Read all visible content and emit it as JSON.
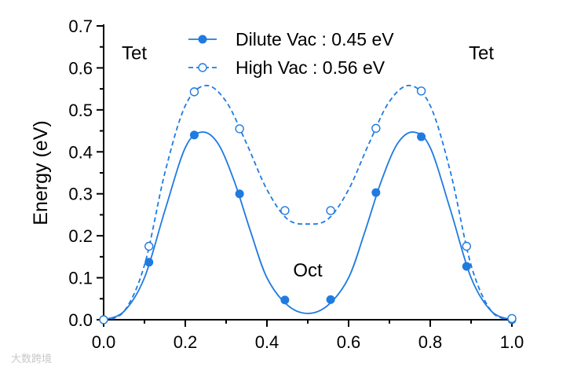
{
  "chart_data": {
    "type": "line",
    "title": "",
    "xlabel": "",
    "ylabel": "Energy (eV)",
    "xlim": [
      0.0,
      1.0
    ],
    "ylim": [
      0.0,
      0.7
    ],
    "xticks": [
      0.0,
      0.2,
      0.4,
      0.6,
      0.8,
      1.0
    ],
    "xtick_labels": [
      "0.0",
      "0.2",
      "0.4",
      "0.6",
      "0.8",
      "1.0"
    ],
    "yticks": [
      0.0,
      0.1,
      0.2,
      0.3,
      0.4,
      0.5,
      0.6,
      0.7
    ],
    "ytick_labels": [
      "0.0",
      "0.1",
      "0.2",
      "0.3",
      "0.4",
      "0.5",
      "0.6",
      "0.7"
    ],
    "grid": false,
    "legend_position": "top-center",
    "series": [
      {
        "name": "Dilute Vac : 0.45 eV",
        "color": "#1f7be0",
        "line_style": "solid",
        "marker": "filled-circle",
        "x": [
          0.0,
          0.111,
          0.222,
          0.333,
          0.444,
          0.556,
          0.667,
          0.778,
          0.889,
          1.0
        ],
        "y": [
          0.0,
          0.137,
          0.44,
          0.3,
          0.047,
          0.048,
          0.303,
          0.436,
          0.127,
          0.0
        ],
        "curve_x": [
          0.0,
          0.05,
          0.1,
          0.15,
          0.2,
          0.24,
          0.28,
          0.32,
          0.36,
          0.4,
          0.45,
          0.5,
          0.55,
          0.6,
          0.64,
          0.68,
          0.72,
          0.76,
          0.8,
          0.85,
          0.9,
          0.95,
          1.0
        ],
        "curve_y": [
          0.0,
          0.02,
          0.1,
          0.26,
          0.41,
          0.447,
          0.42,
          0.33,
          0.21,
          0.1,
          0.035,
          0.015,
          0.035,
          0.1,
          0.21,
          0.33,
          0.42,
          0.447,
          0.41,
          0.26,
          0.1,
          0.02,
          0.0
        ]
      },
      {
        "name": "High Vac : 0.56 eV",
        "color": "#1f7be0",
        "line_style": "dashed",
        "marker": "open-circle",
        "x": [
          0.0,
          0.111,
          0.222,
          0.333,
          0.444,
          0.556,
          0.667,
          0.778,
          0.889,
          1.0
        ],
        "y": [
          0.0,
          0.175,
          0.543,
          0.455,
          0.26,
          0.26,
          0.456,
          0.545,
          0.175,
          0.003
        ],
        "curve_x": [
          0.0,
          0.05,
          0.1,
          0.15,
          0.2,
          0.25,
          0.3,
          0.35,
          0.4,
          0.45,
          0.5,
          0.55,
          0.6,
          0.65,
          0.7,
          0.75,
          0.8,
          0.85,
          0.9,
          0.95,
          1.0
        ],
        "curve_y": [
          0.0,
          0.02,
          0.13,
          0.35,
          0.51,
          0.558,
          0.52,
          0.42,
          0.31,
          0.24,
          0.228,
          0.24,
          0.31,
          0.42,
          0.52,
          0.558,
          0.51,
          0.35,
          0.13,
          0.02,
          0.0
        ]
      }
    ],
    "annotations": [
      {
        "text": "Tet",
        "x": 0.075,
        "y": 0.62
      },
      {
        "text": "Tet",
        "x": 0.925,
        "y": 0.62
      },
      {
        "text": "Oct",
        "x": 0.5,
        "y": 0.103
      }
    ]
  },
  "watermark_text": "大数跨境"
}
